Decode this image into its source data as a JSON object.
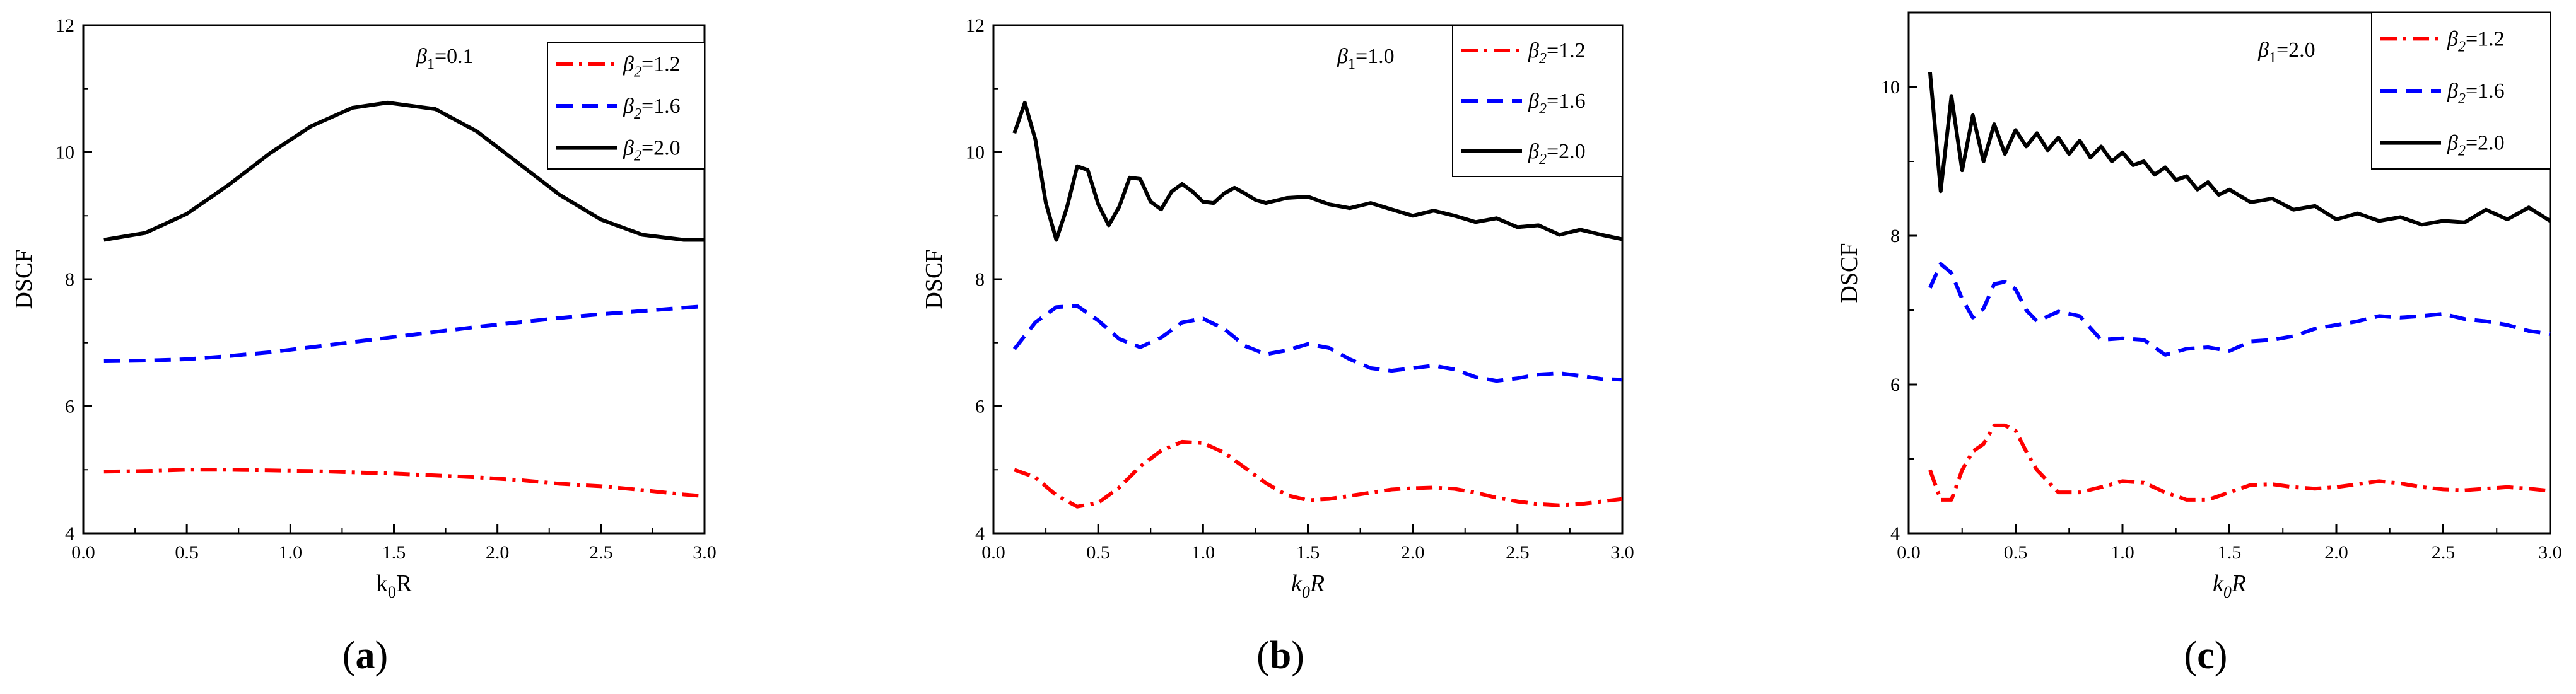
{
  "figure": {
    "panels": [
      {
        "label": "a",
        "param_symbol": "β",
        "param_sub": "1",
        "param_value": "0.1",
        "xlabel": {
          "main": "k",
          "sub": "0",
          "tail": "R",
          "italic": false
        },
        "ylabel": "DSCF",
        "legend_symbol": "β",
        "legend_sub": "2",
        "legend_values": [
          "1.2",
          "1.6",
          "2.0"
        ]
      },
      {
        "label": "b",
        "param_symbol": "β",
        "param_sub": "1",
        "param_value": "1.0",
        "xlabel": {
          "main": "k",
          "sub": "0",
          "tail": "R",
          "italic": true
        },
        "ylabel": "DSCF",
        "legend_symbol": "β",
        "legend_sub": "2",
        "legend_values": [
          "1.2",
          "1.6",
          "2.0"
        ]
      },
      {
        "label": "c",
        "param_symbol": "β",
        "param_sub": "1",
        "param_value": "2.0",
        "xlabel": {
          "main": "k",
          "sub": "0",
          "tail": "R",
          "italic": true
        },
        "ylabel": "DSCF",
        "legend_symbol": "β",
        "legend_sub": "2",
        "legend_values": [
          "1.2",
          "1.6",
          "2.0"
        ]
      }
    ]
  },
  "colors": {
    "series_1_2": "#ff0000",
    "series_1_6": "#0000ff",
    "series_2_0": "#000000",
    "axis": "#000000"
  },
  "chart_data": [
    {
      "type": "line",
      "title": "(a) β1=0.1",
      "xlabel": "k0R",
      "ylabel": "DSCF",
      "xlim": [
        0,
        3
      ],
      "ylim": [
        4,
        12
      ],
      "xticks": [
        0,
        0.5,
        1.0,
        1.5,
        2.0,
        2.5,
        3.0
      ],
      "xtick_labels": [
        "0.0",
        "0.5",
        "1.0",
        "1.5",
        "2.0",
        "2.5",
        "3.0"
      ],
      "yticks": [
        4,
        6,
        8,
        10,
        12
      ],
      "ytick_labels": [
        "4",
        "6",
        "8",
        "10",
        "12"
      ],
      "legend": [
        "β2=1.2",
        "β2=1.6",
        "β2=2.0"
      ],
      "series": [
        {
          "name": "β2=1.2",
          "style": "dashdot",
          "color": "#ff0000",
          "x": [
            0.1,
            0.3,
            0.5,
            0.7,
            0.9,
            1.1,
            1.3,
            1.5,
            1.7,
            1.9,
            2.1,
            2.3,
            2.5,
            2.7,
            2.9,
            2.98
          ],
          "y": [
            4.97,
            4.98,
            5.0,
            5.0,
            4.99,
            4.98,
            4.96,
            4.94,
            4.91,
            4.88,
            4.84,
            4.78,
            4.74,
            4.68,
            4.61,
            4.59
          ]
        },
        {
          "name": "β2=1.6",
          "style": "dash",
          "color": "#0000ff",
          "x": [
            0.1,
            0.3,
            0.5,
            0.7,
            0.9,
            1.1,
            1.3,
            1.5,
            1.7,
            1.9,
            2.1,
            2.3,
            2.5,
            2.7,
            2.9,
            2.98
          ],
          "y": [
            6.71,
            6.72,
            6.74,
            6.79,
            6.85,
            6.93,
            7.01,
            7.09,
            7.17,
            7.25,
            7.32,
            7.39,
            7.45,
            7.5,
            7.55,
            7.57
          ]
        },
        {
          "name": "β2=2.0",
          "style": "solid",
          "color": "#000000",
          "x": [
            0.1,
            0.3,
            0.5,
            0.7,
            0.9,
            1.1,
            1.3,
            1.47,
            1.7,
            1.9,
            2.1,
            2.3,
            2.5,
            2.7,
            2.9,
            3.0
          ],
          "y": [
            8.62,
            8.73,
            9.03,
            9.48,
            9.98,
            10.41,
            10.7,
            10.78,
            10.68,
            10.33,
            9.83,
            9.33,
            8.94,
            8.7,
            8.62,
            8.62
          ]
        }
      ]
    },
    {
      "type": "line",
      "title": "(b) β1=1.0",
      "xlabel": "k0R",
      "ylabel": "DSCF",
      "xlim": [
        0,
        3
      ],
      "ylim": [
        4,
        12
      ],
      "xticks": [
        0,
        0.5,
        1.0,
        1.5,
        2.0,
        2.5,
        3.0
      ],
      "xtick_labels": [
        "0.0",
        "0.5",
        "1.0",
        "1.5",
        "2.0",
        "2.5",
        "3.0"
      ],
      "yticks": [
        4,
        6,
        8,
        10,
        12
      ],
      "ytick_labels": [
        "4",
        "6",
        "8",
        "10",
        "12"
      ],
      "legend": [
        "β2=1.2",
        "β2=1.6",
        "β2=2.0"
      ],
      "series": [
        {
          "name": "β2=1.2",
          "style": "dashdot",
          "color": "#ff0000",
          "x": [
            0.1,
            0.2,
            0.3,
            0.4,
            0.5,
            0.6,
            0.7,
            0.8,
            0.9,
            1.0,
            1.1,
            1.2,
            1.3,
            1.4,
            1.5,
            1.6,
            1.7,
            1.8,
            1.9,
            2.0,
            2.1,
            2.2,
            2.3,
            2.4,
            2.5,
            2.6,
            2.7,
            2.8,
            2.9,
            3.0
          ],
          "y": [
            5.0,
            4.88,
            4.6,
            4.42,
            4.48,
            4.72,
            5.05,
            5.3,
            5.44,
            5.42,
            5.27,
            5.03,
            4.79,
            4.6,
            4.52,
            4.54,
            4.59,
            4.64,
            4.69,
            4.71,
            4.72,
            4.7,
            4.64,
            4.56,
            4.5,
            4.46,
            4.44,
            4.46,
            4.5,
            4.54
          ]
        },
        {
          "name": "β2=1.6",
          "style": "dash",
          "color": "#0000ff",
          "x": [
            0.1,
            0.2,
            0.3,
            0.4,
            0.5,
            0.6,
            0.7,
            0.8,
            0.9,
            1.0,
            1.1,
            1.2,
            1.3,
            1.4,
            1.5,
            1.6,
            1.7,
            1.8,
            1.9,
            2.0,
            2.1,
            2.2,
            2.3,
            2.4,
            2.5,
            2.6,
            2.7,
            2.8,
            2.9,
            3.0
          ],
          "y": [
            6.9,
            7.32,
            7.56,
            7.58,
            7.35,
            7.06,
            6.93,
            7.08,
            7.32,
            7.38,
            7.22,
            6.95,
            6.82,
            6.88,
            6.98,
            6.92,
            6.74,
            6.6,
            6.56,
            6.6,
            6.64,
            6.58,
            6.46,
            6.4,
            6.44,
            6.5,
            6.52,
            6.48,
            6.43,
            6.42
          ]
        },
        {
          "name": "β2=2.0",
          "style": "solid",
          "color": "#000000",
          "x": [
            0.1,
            0.15,
            0.2,
            0.25,
            0.3,
            0.35,
            0.4,
            0.45,
            0.5,
            0.55,
            0.6,
            0.65,
            0.7,
            0.75,
            0.8,
            0.85,
            0.9,
            0.95,
            1.0,
            1.05,
            1.1,
            1.15,
            1.2,
            1.25,
            1.3,
            1.4,
            1.5,
            1.6,
            1.7,
            1.8,
            1.9,
            2.0,
            2.1,
            2.2,
            2.3,
            2.4,
            2.5,
            2.6,
            2.7,
            2.8,
            2.9,
            3.0
          ],
          "y": [
            10.3,
            10.78,
            10.2,
            9.2,
            8.62,
            9.12,
            9.78,
            9.72,
            9.18,
            8.85,
            9.14,
            9.6,
            9.58,
            9.22,
            9.1,
            9.38,
            9.5,
            9.38,
            9.22,
            9.2,
            9.35,
            9.44,
            9.35,
            9.25,
            9.2,
            9.28,
            9.3,
            9.18,
            9.12,
            9.2,
            9.1,
            9.0,
            9.08,
            9.0,
            8.9,
            8.96,
            8.82,
            8.85,
            8.7,
            8.78,
            8.7,
            8.63
          ]
        }
      ]
    },
    {
      "type": "line",
      "title": "(c) β1=2.0",
      "xlabel": "k0R",
      "ylabel": "DSCF",
      "xlim": [
        0,
        3
      ],
      "ylim": [
        4,
        11
      ],
      "xticks": [
        0,
        0.5,
        1.0,
        1.5,
        2.0,
        2.5,
        3.0
      ],
      "xtick_labels": [
        "0.0",
        "0.5",
        "1.0",
        "1.5",
        "2.0",
        "2.5",
        "3.0"
      ],
      "yticks": [
        4,
        6,
        8,
        10
      ],
      "ytick_labels": [
        "4",
        "6",
        "8",
        "10"
      ],
      "legend": [
        "β2=1.2",
        "β2=1.6",
        "β2=2.0"
      ],
      "series": [
        {
          "name": "β2=1.2",
          "style": "dashdot",
          "color": "#ff0000",
          "x": [
            0.1,
            0.15,
            0.2,
            0.25,
            0.3,
            0.35,
            0.4,
            0.45,
            0.5,
            0.55,
            0.6,
            0.7,
            0.8,
            0.9,
            1.0,
            1.1,
            1.2,
            1.3,
            1.4,
            1.5,
            1.6,
            1.7,
            1.8,
            1.9,
            2.0,
            2.1,
            2.2,
            2.3,
            2.4,
            2.5,
            2.6,
            2.7,
            2.8,
            2.9,
            3.0
          ],
          "y": [
            4.85,
            4.45,
            4.45,
            4.85,
            5.1,
            5.2,
            5.45,
            5.45,
            5.38,
            5.1,
            4.85,
            4.55,
            4.55,
            4.62,
            4.7,
            4.68,
            4.55,
            4.45,
            4.45,
            4.55,
            4.65,
            4.66,
            4.62,
            4.6,
            4.62,
            4.66,
            4.7,
            4.67,
            4.62,
            4.59,
            4.58,
            4.6,
            4.62,
            4.6,
            4.57
          ]
        },
        {
          "name": "β2=1.6",
          "style": "dash",
          "color": "#0000ff",
          "x": [
            0.1,
            0.15,
            0.2,
            0.25,
            0.3,
            0.35,
            0.4,
            0.45,
            0.5,
            0.55,
            0.6,
            0.7,
            0.8,
            0.9,
            1.0,
            1.1,
            1.2,
            1.3,
            1.4,
            1.5,
            1.6,
            1.7,
            1.8,
            1.9,
            2.0,
            2.1,
            2.2,
            2.3,
            2.4,
            2.5,
            2.6,
            2.7,
            2.8,
            2.9,
            3.0
          ],
          "y": [
            7.3,
            7.62,
            7.5,
            7.15,
            6.9,
            7.02,
            7.35,
            7.38,
            7.28,
            7.0,
            6.85,
            6.98,
            6.92,
            6.6,
            6.62,
            6.6,
            6.4,
            6.48,
            6.5,
            6.45,
            6.58,
            6.6,
            6.65,
            6.75,
            6.8,
            6.85,
            6.92,
            6.9,
            6.92,
            6.95,
            6.88,
            6.85,
            6.8,
            6.72,
            6.68
          ]
        },
        {
          "name": "β2=2.0",
          "style": "solid",
          "color": "#000000",
          "x": [
            0.1,
            0.15,
            0.2,
            0.25,
            0.3,
            0.35,
            0.4,
            0.45,
            0.5,
            0.55,
            0.6,
            0.65,
            0.7,
            0.75,
            0.8,
            0.85,
            0.9,
            0.95,
            1.0,
            1.05,
            1.1,
            1.15,
            1.2,
            1.25,
            1.3,
            1.35,
            1.4,
            1.45,
            1.5,
            1.6,
            1.7,
            1.8,
            1.9,
            2.0,
            2.1,
            2.2,
            2.3,
            2.4,
            2.5,
            2.6,
            2.7,
            2.8,
            2.9,
            3.0
          ],
          "y": [
            10.2,
            8.6,
            9.88,
            8.88,
            9.62,
            9.0,
            9.5,
            9.1,
            9.42,
            9.2,
            9.38,
            9.15,
            9.32,
            9.1,
            9.28,
            9.05,
            9.2,
            9.0,
            9.12,
            8.95,
            9.0,
            8.82,
            8.92,
            8.75,
            8.8,
            8.62,
            8.72,
            8.55,
            8.62,
            8.45,
            8.5,
            8.35,
            8.4,
            8.22,
            8.3,
            8.2,
            8.25,
            8.15,
            8.2,
            8.18,
            8.35,
            8.22,
            8.38,
            8.2
          ]
        }
      ]
    }
  ]
}
